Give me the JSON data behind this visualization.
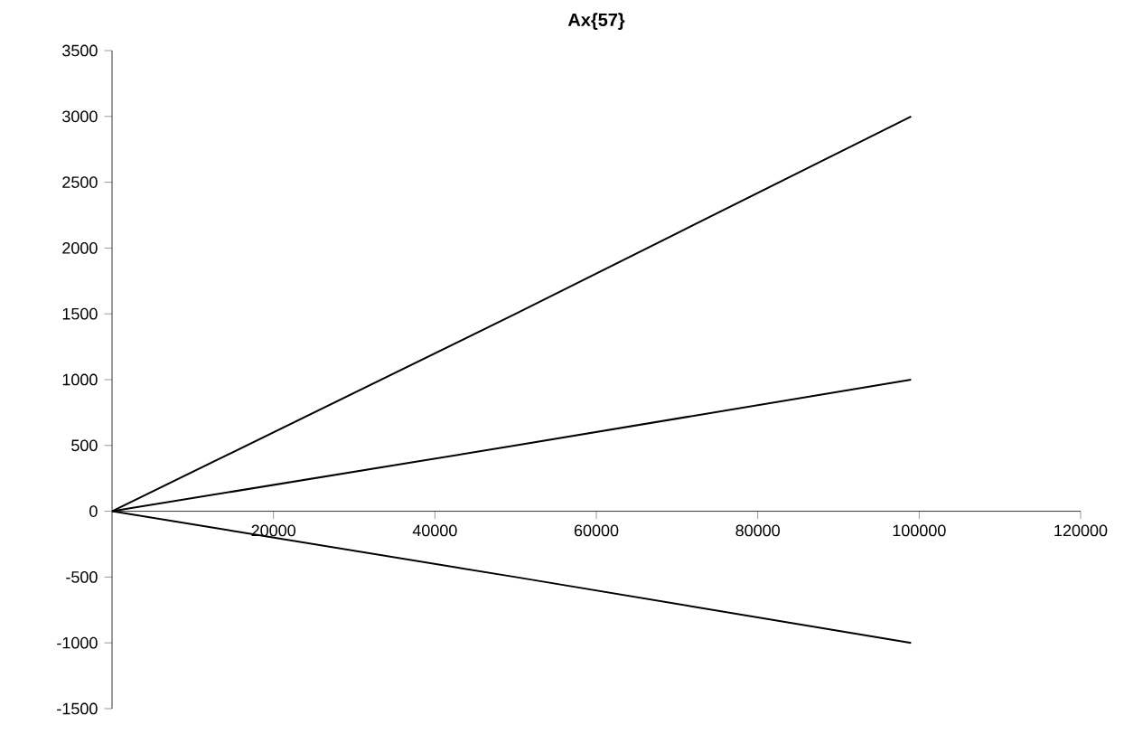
{
  "chart_data": {
    "type": "line",
    "title": "Ax{57}",
    "series": [
      {
        "color": "#000000",
        "x": [
          0,
          50000,
          99000
        ],
        "values": [
          0,
          1500,
          3000
        ]
      },
      {
        "color": "#000000",
        "x": [
          0,
          50000,
          99000
        ],
        "values": [
          0,
          500,
          1000
        ]
      },
      {
        "color": "#000000",
        "x": [
          0,
          50000,
          99000
        ],
        "values": [
          0,
          -500,
          -1000
        ]
      }
    ],
    "xlim": [
      0,
      120000
    ],
    "xticks": [
      20000,
      40000,
      60000,
      80000,
      100000,
      120000
    ],
    "ylim": [
      -1500,
      3500
    ],
    "yticks": [
      -1500,
      -1000,
      -500,
      0,
      500,
      1000,
      1500,
      2000,
      2500,
      3000,
      3500
    ],
    "grid": false,
    "marker": "none",
    "line_style": "solid"
  }
}
